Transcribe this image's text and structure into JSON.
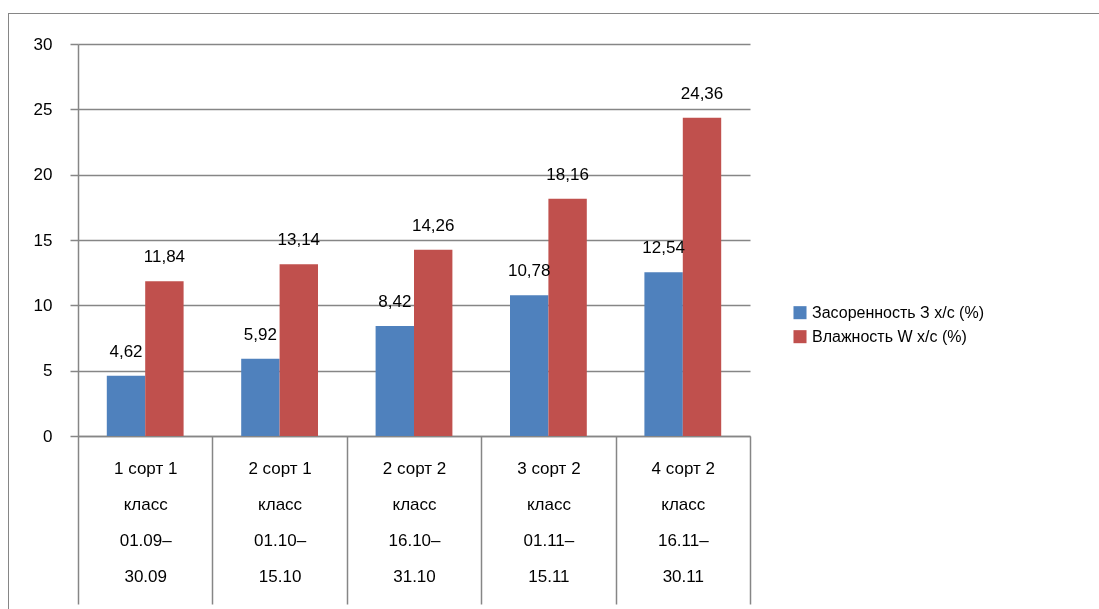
{
  "chart_data": {
    "type": "bar",
    "categories": [
      "1 сорт 1 класс 01.09–30.09",
      "2 сорт 1 класс 01.10–15.10",
      "2 сорт 2 класс 16.10–31.10",
      "3 сорт 2 класс 01.11–15.11",
      "4 сорт 2 класс 16.11–30.11"
    ],
    "series": [
      {
        "name": "Засоренность З х/с (%)",
        "color": "#4f81bd",
        "values": [
          4.62,
          5.92,
          8.42,
          10.78,
          12.54
        ],
        "value_labels": [
          "4,62",
          "5,92",
          "8,42",
          "10,78",
          "12,54"
        ]
      },
      {
        "name": "Влажность W х/с (%)",
        "color": "#c0504d",
        "values": [
          11.84,
          13.14,
          14.26,
          18.16,
          24.36
        ],
        "value_labels": [
          "11,84",
          "13,14",
          "14,26",
          "18,16",
          "24,36"
        ]
      }
    ],
    "ylim": [
      0,
      30
    ],
    "yticks": [
      0,
      5,
      10,
      15,
      20,
      25,
      30
    ],
    "grid": "y",
    "legend": "right"
  }
}
